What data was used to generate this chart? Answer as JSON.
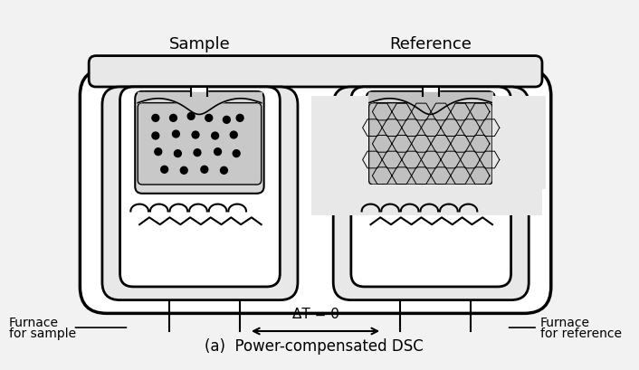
{
  "bg_color": "#f0f0f0",
  "white": "#ffffff",
  "black": "#000000",
  "gray_light": "#cccccc",
  "gray_medium": "#aaaaaa",
  "title": "(a)  Power-compensated DSC",
  "label_sample": "Sample",
  "label_reference": "Reference",
  "label_furnace_left1": "Furnace",
  "label_furnace_left2": "for sample",
  "label_furnace_right1": "Furnace",
  "label_furnace_right2": "for reference",
  "label_delta_t": "ΔT = 0",
  "figsize": [
    7.06,
    4.1
  ],
  "dpi": 100
}
